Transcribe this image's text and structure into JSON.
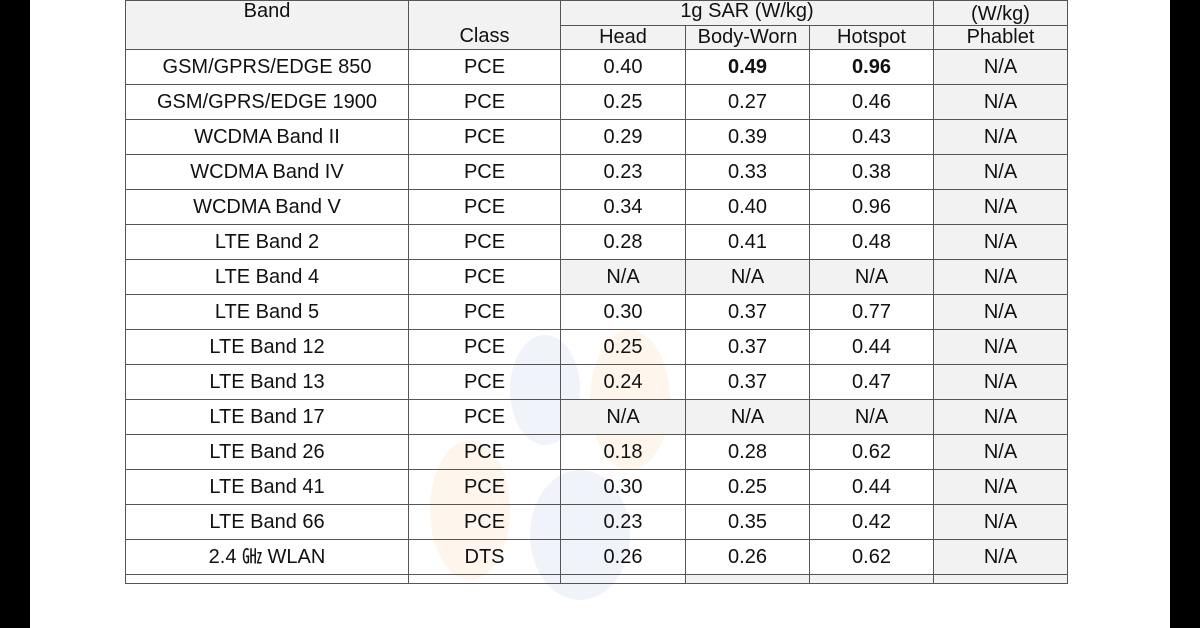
{
  "header": {
    "band": "Band",
    "class": "Class",
    "sar_1g": "1g SAR (W/kg)",
    "sar_10g_unit": "(W/kg)",
    "head": "Head",
    "body_worn": "Body-Worn",
    "hotspot": "Hotspot",
    "phablet": "Phablet"
  },
  "rows": [
    {
      "band": "GSM/GPRS/EDGE 850",
      "class": "PCE",
      "head": "0.40",
      "body": "0.49",
      "hotspot": "0.96",
      "phablet": "N/A",
      "bold": [
        "body",
        "hotspot"
      ]
    },
    {
      "band": "GSM/GPRS/EDGE 1900",
      "class": "PCE",
      "head": "0.25",
      "body": "0.27",
      "hotspot": "0.46",
      "phablet": "N/A"
    },
    {
      "band": "WCDMA Band II",
      "class": "PCE",
      "head": "0.29",
      "body": "0.39",
      "hotspot": "0.43",
      "phablet": "N/A"
    },
    {
      "band": "WCDMA Band IV",
      "class": "PCE",
      "head": "0.23",
      "body": "0.33",
      "hotspot": "0.38",
      "phablet": "N/A"
    },
    {
      "band": "WCDMA Band V",
      "class": "PCE",
      "head": "0.34",
      "body": "0.40",
      "hotspot": "0.96",
      "phablet": "N/A"
    },
    {
      "band": "LTE Band 2",
      "class": "PCE",
      "head": "0.28",
      "body": "0.41",
      "hotspot": "0.48",
      "phablet": "N/A"
    },
    {
      "band": "LTE Band 4",
      "class": "PCE",
      "head": "N/A",
      "body": "N/A",
      "hotspot": "N/A",
      "phablet": "N/A"
    },
    {
      "band": "LTE Band 5",
      "class": "PCE",
      "head": "0.30",
      "body": "0.37",
      "hotspot": "0.77",
      "phablet": "N/A"
    },
    {
      "band": "LTE Band 12",
      "class": "PCE",
      "head": "0.25",
      "body": "0.37",
      "hotspot": "0.44",
      "phablet": "N/A"
    },
    {
      "band": "LTE Band 13",
      "class": "PCE",
      "head": "0.24",
      "body": "0.37",
      "hotspot": "0.47",
      "phablet": "N/A"
    },
    {
      "band": "LTE Band 17",
      "class": "PCE",
      "head": "N/A",
      "body": "N/A",
      "hotspot": "N/A",
      "phablet": "N/A"
    },
    {
      "band": "LTE Band 26",
      "class": "PCE",
      "head": "0.18",
      "body": "0.28",
      "hotspot": "0.62",
      "phablet": "N/A"
    },
    {
      "band": "LTE Band 41",
      "class": "PCE",
      "head": "0.30",
      "body": "0.25",
      "hotspot": "0.44",
      "phablet": "N/A"
    },
    {
      "band": "LTE Band 66",
      "class": "PCE",
      "head": "0.23",
      "body": "0.35",
      "hotspot": "0.42",
      "phablet": "N/A"
    },
    {
      "band": "2.4 ㎓ WLAN",
      "class": "DTS",
      "head": "0.26",
      "body": "0.26",
      "hotspot": "0.62",
      "phablet": "N/A"
    },
    {
      "band": "",
      "class": "",
      "head": "",
      "body": "",
      "hotspot": "",
      "phablet": ""
    }
  ]
}
